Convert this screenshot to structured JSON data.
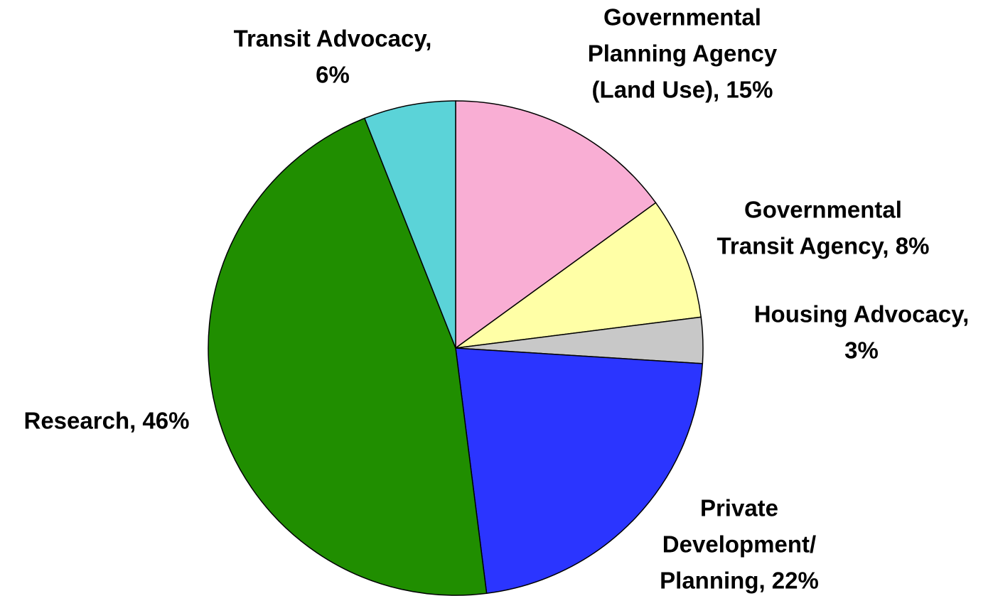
{
  "chart_data": {
    "type": "pie",
    "categories": [
      "Governmental Planning Agency (Land Use)",
      "Governmental Transit Agency",
      "Housing Advocacy",
      "Private Development/ Planning",
      "Research",
      "Transit Advocacy"
    ],
    "values": [
      15,
      8,
      3,
      22,
      46,
      6
    ],
    "value_labels": [
      [
        "Governmental",
        "Planning Agency",
        "(Land Use), 15%"
      ],
      [
        "Governmental",
        "Transit Agency, 8%"
      ],
      [
        "Housing Advocacy,",
        "3%"
      ],
      [
        "Private",
        "Development/",
        "Planning, 22%"
      ],
      [
        "Research, 46%"
      ],
      [
        "Transit Advocacy,",
        "6%"
      ]
    ],
    "colors": [
      "#f9aed4",
      "#ffffa6",
      "#c8c8c8",
      "#2b35ff",
      "#208e00",
      "#5bd3d8"
    ]
  }
}
